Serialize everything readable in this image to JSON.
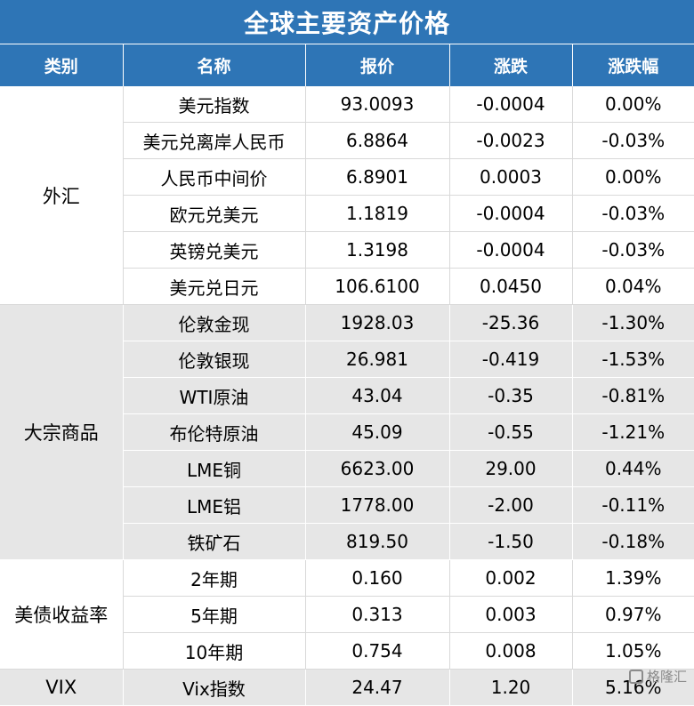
{
  "title": "全球主要资产价格",
  "headers": [
    "类别",
    "名称",
    "报价",
    "涨跌",
    "涨跌幅"
  ],
  "groups": [
    {
      "category": "外汇",
      "shade": "white",
      "rows": [
        [
          "美元指数",
          "93.0093",
          "-0.0004",
          "0.00%"
        ],
        [
          "美元兑离岸人民币",
          "6.8864",
          "-0.0023",
          "-0.03%"
        ],
        [
          "人民币中间价",
          "6.8901",
          "0.0003",
          "0.00%"
        ],
        [
          "欧元兑美元",
          "1.1819",
          "-0.0004",
          "-0.03%"
        ],
        [
          "英镑兑美元",
          "1.3198",
          "-0.0004",
          "-0.03%"
        ],
        [
          "美元兑日元",
          "106.6100",
          "0.0450",
          "0.04%"
        ]
      ]
    },
    {
      "category": "大宗商品",
      "shade": "gray",
      "rows": [
        [
          "伦敦金现",
          "1928.03",
          "-25.36",
          "-1.30%"
        ],
        [
          "伦敦银现",
          "26.981",
          "-0.419",
          "-1.53%"
        ],
        [
          "WTI原油",
          "43.04",
          "-0.35",
          "-0.81%"
        ],
        [
          "布伦特原油",
          "45.09",
          "-0.55",
          "-1.21%"
        ],
        [
          "LME铜",
          "6623.00",
          "29.00",
          "0.44%"
        ],
        [
          "LME铝",
          "1778.00",
          "-2.00",
          "-0.11%"
        ],
        [
          "铁矿石",
          "819.50",
          "-1.50",
          "-0.18%"
        ]
      ]
    },
    {
      "category": "美债收益率",
      "shade": "white",
      "rows": [
        [
          "2年期",
          "0.160",
          "0.002",
          "1.39%"
        ],
        [
          "5年期",
          "0.313",
          "0.003",
          "0.97%"
        ],
        [
          "10年期",
          "0.754",
          "0.008",
          "1.05%"
        ]
      ]
    },
    {
      "category": "VIX",
      "shade": "gray",
      "rows": [
        [
          "Vix指数",
          "24.47",
          "1.20",
          "5.16%"
        ]
      ]
    }
  ],
  "watermark": "格隆汇",
  "colors": {
    "header_bg": "#2e75b6",
    "header_text": "#ffffff",
    "gray_band": "#e6e6e6"
  }
}
